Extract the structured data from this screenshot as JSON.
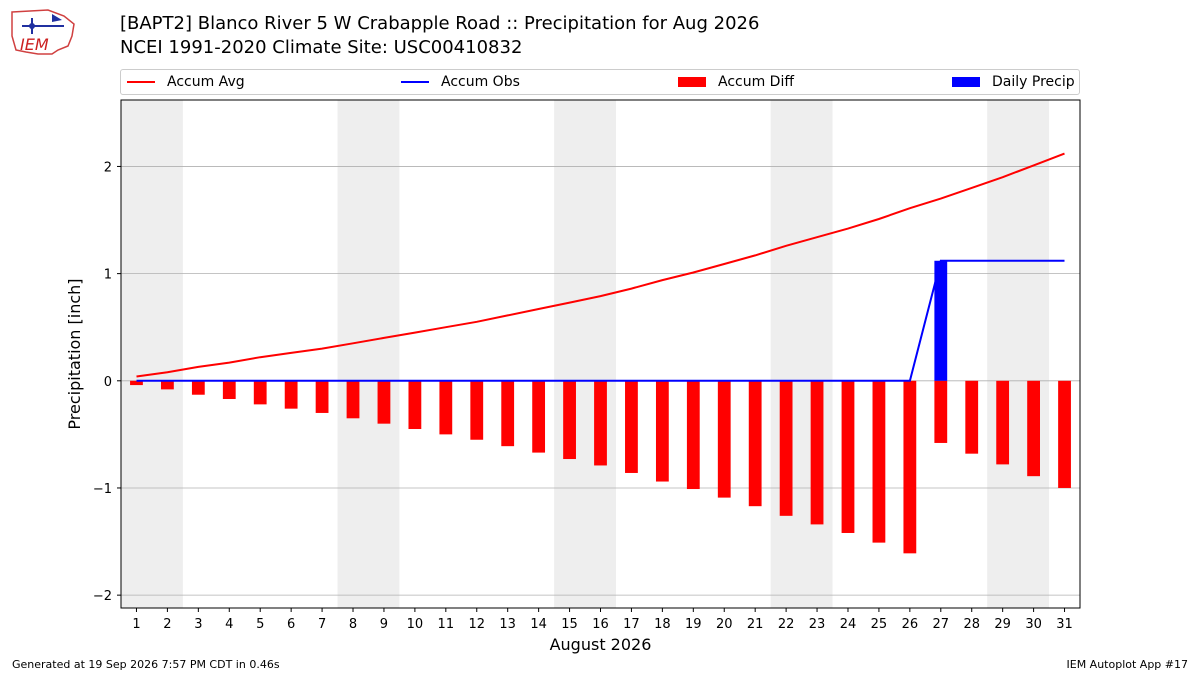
{
  "header": {
    "logo_text": "IEM",
    "title_line1": "[BAPT2] Blanco River 5 W Crabapple Road :: Precipitation for Aug 2026",
    "title_line2": "NCEI 1991-2020 Climate Site: USC00410832"
  },
  "footer": {
    "generated": "Generated at 19 Sep 2026 7:57 PM CDT in 0.46s",
    "app": "IEM Autoplot App #17"
  },
  "colors": {
    "accum_avg": "#ff0000",
    "accum_obs": "#0000ff",
    "accum_diff": "#ff0000",
    "daily_precip": "#0000ff",
    "weekend_shade": "#eeeeee",
    "grid": "#b0b0b0"
  },
  "chart_data": {
    "type": "bar",
    "title": "[BAPT2] Blanco River 5 W Crabapple Road :: Precipitation for Aug 2026",
    "subtitle": "NCEI 1991-2020 Climate Site: USC00410832",
    "xlabel": "August 2026",
    "ylabel": "Precipitation [inch]",
    "xlim": [
      0.5,
      31.5
    ],
    "ylim": [
      -2.12,
      2.62
    ],
    "x_ticks": [
      1,
      2,
      3,
      4,
      5,
      6,
      7,
      8,
      9,
      10,
      11,
      12,
      13,
      14,
      15,
      16,
      17,
      18,
      19,
      20,
      21,
      22,
      23,
      24,
      25,
      26,
      27,
      28,
      29,
      30,
      31
    ],
    "y_ticks": [
      {
        "value": -2,
        "label": "−2"
      },
      {
        "value": -1,
        "label": "−1"
      },
      {
        "value": 0,
        "label": "0"
      },
      {
        "value": 1,
        "label": "1"
      },
      {
        "value": 2,
        "label": "2"
      }
    ],
    "grid": "horizontal",
    "legend_position": "top",
    "weekend_spans": [
      [
        0.5,
        2.5
      ],
      [
        7.5,
        9.5
      ],
      [
        14.5,
        16.5
      ],
      [
        21.5,
        23.5
      ],
      [
        28.5,
        30.5
      ]
    ],
    "days": [
      1,
      2,
      3,
      4,
      5,
      6,
      7,
      8,
      9,
      10,
      11,
      12,
      13,
      14,
      15,
      16,
      17,
      18,
      19,
      20,
      21,
      22,
      23,
      24,
      25,
      26,
      27,
      28,
      29,
      30,
      31
    ],
    "series": [
      {
        "name": "Accum Avg",
        "kind": "line",
        "values": [
          0.04,
          0.08,
          0.13,
          0.17,
          0.22,
          0.26,
          0.3,
          0.35,
          0.4,
          0.45,
          0.5,
          0.55,
          0.61,
          0.67,
          0.73,
          0.79,
          0.86,
          0.94,
          1.01,
          1.09,
          1.17,
          1.26,
          1.34,
          1.42,
          1.51,
          1.61,
          1.7,
          1.8,
          1.9,
          2.01,
          2.12
        ]
      },
      {
        "name": "Accum Obs",
        "kind": "line",
        "values": [
          0,
          0,
          0,
          0,
          0,
          0,
          0,
          0,
          0,
          0,
          0,
          0,
          0,
          0,
          0,
          0,
          0,
          0,
          0,
          0,
          0,
          0,
          0,
          0,
          0,
          0,
          1.12,
          1.12,
          1.12,
          1.12,
          1.12
        ]
      },
      {
        "name": "Accum Diff",
        "kind": "bar",
        "values": [
          -0.04,
          -0.08,
          -0.13,
          -0.17,
          -0.22,
          -0.26,
          -0.3,
          -0.35,
          -0.4,
          -0.45,
          -0.5,
          -0.55,
          -0.61,
          -0.67,
          -0.73,
          -0.79,
          -0.86,
          -0.94,
          -1.01,
          -1.09,
          -1.17,
          -1.26,
          -1.34,
          -1.42,
          -1.51,
          -1.61,
          -0.58,
          -0.68,
          -0.78,
          -0.89,
          -1.0
        ]
      },
      {
        "name": "Daily Precip",
        "kind": "bar",
        "values": [
          0,
          0,
          0,
          0,
          0,
          0,
          0,
          0,
          0,
          0,
          0,
          0,
          0,
          0,
          0,
          0,
          0,
          0,
          0,
          0,
          0,
          0,
          0,
          0,
          0,
          0,
          1.12,
          0,
          0,
          0,
          0
        ]
      }
    ]
  }
}
